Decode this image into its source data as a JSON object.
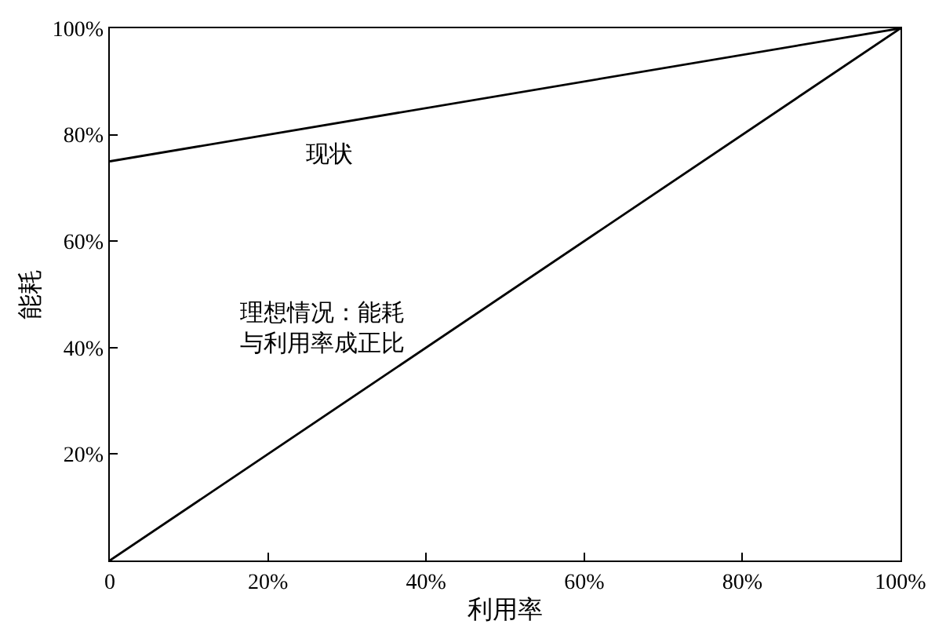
{
  "chart_data": {
    "type": "line",
    "xlabel": "利用率",
    "ylabel": "能耗",
    "x": [
      0,
      100
    ],
    "series": [
      {
        "name": "现状",
        "color": "#000000",
        "values": [
          75,
          100
        ]
      },
      {
        "name": "理想情况：能耗与利用率成正比",
        "color": "#000000",
        "values": [
          0,
          100
        ]
      }
    ],
    "xlim": [
      0,
      100
    ],
    "ylim": [
      0,
      100
    ],
    "xticks": [
      {
        "value": 0,
        "label": "0"
      },
      {
        "value": 20,
        "label": "20%"
      },
      {
        "value": 40,
        "label": "40%"
      },
      {
        "value": 60,
        "label": "60%"
      },
      {
        "value": 80,
        "label": "80%"
      },
      {
        "value": 100,
        "label": "100%"
      }
    ],
    "yticks": [
      {
        "value": 20,
        "label": "20%"
      },
      {
        "value": 40,
        "label": "40%"
      },
      {
        "value": 60,
        "label": "60%"
      },
      {
        "value": 80,
        "label": "80%"
      },
      {
        "value": 100,
        "label": "100%"
      }
    ],
    "legend": false,
    "marker": "none",
    "line_style": "solid"
  }
}
